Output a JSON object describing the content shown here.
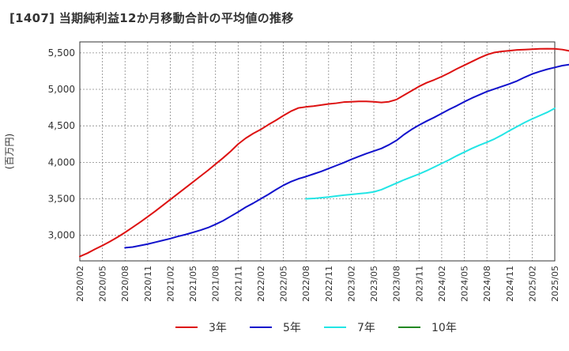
{
  "chart_data": {
    "type": "line",
    "title": "[1407]  当期純利益12か月移動合計の平均値の推移",
    "ylabel": "(百万円)",
    "xlabel": "",
    "ylim": [
      2650,
      5650
    ],
    "yticks": [
      3000,
      3500,
      4000,
      4500,
      5000,
      5500
    ],
    "ytick_labels": [
      "3,000",
      "3,500",
      "4,000",
      "4,500",
      "5,000",
      "5,500"
    ],
    "x_range_months": [
      0,
      63
    ],
    "xtick_labels": [
      "2020/02",
      "2020/05",
      "2020/08",
      "2020/11",
      "2021/02",
      "2021/05",
      "2021/08",
      "2021/11",
      "2022/02",
      "2022/05",
      "2022/08",
      "2022/11",
      "2023/02",
      "2023/05",
      "2023/08",
      "2023/11",
      "2024/02",
      "2024/05",
      "2024/08",
      "2024/11",
      "2025/02",
      "2025/05"
    ],
    "grid": true,
    "legend_position": "bottom",
    "series": [
      {
        "name": "3年",
        "color": "#dd1111",
        "start": "2020/02",
        "values": [
          2710,
          2755,
          2810,
          2860,
          2915,
          2975,
          3040,
          3110,
          3180,
          3255,
          3330,
          3410,
          3490,
          3570,
          3650,
          3730,
          3810,
          3890,
          3975,
          4060,
          4150,
          4250,
          4330,
          4395,
          4450,
          4515,
          4575,
          4640,
          4700,
          4745,
          4760,
          4770,
          4785,
          4800,
          4810,
          4825,
          4830,
          4835,
          4835,
          4830,
          4820,
          4830,
          4860,
          4920,
          4980,
          5040,
          5090,
          5130,
          5175,
          5225,
          5280,
          5330,
          5380,
          5430,
          5475,
          5505,
          5520,
          5530,
          5540,
          5545,
          5550,
          5555,
          5557,
          5555,
          5545,
          5525
        ]
      },
      {
        "name": "5年",
        "color": "#1111cc",
        "start": "2020/08",
        "values": [
          2830,
          2840,
          2860,
          2880,
          2905,
          2930,
          2955,
          2985,
          3010,
          3040,
          3070,
          3105,
          3150,
          3200,
          3260,
          3320,
          3385,
          3440,
          3500,
          3560,
          3625,
          3685,
          3735,
          3775,
          3805,
          3840,
          3875,
          3915,
          3955,
          3995,
          4040,
          4080,
          4120,
          4155,
          4190,
          4240,
          4300,
          4380,
          4450,
          4510,
          4565,
          4615,
          4670,
          4725,
          4775,
          4830,
          4880,
          4925,
          4970,
          5005,
          5040,
          5075,
          5115,
          5165,
          5210,
          5245,
          5275,
          5300,
          5325,
          5340
        ]
      },
      {
        "name": "7年",
        "color": "#22e5e5",
        "start": "2022/08",
        "values": [
          3500,
          3505,
          3515,
          3525,
          3538,
          3550,
          3560,
          3570,
          3580,
          3595,
          3625,
          3670,
          3715,
          3760,
          3800,
          3840,
          3885,
          3935,
          3985,
          4035,
          4090,
          4140,
          4190,
          4235,
          4275,
          4320,
          4375,
          4435,
          4490,
          4545,
          4595,
          4640,
          4685,
          4740
        ]
      },
      {
        "name": "10年",
        "color": "#228822",
        "start": "",
        "values": []
      }
    ]
  }
}
